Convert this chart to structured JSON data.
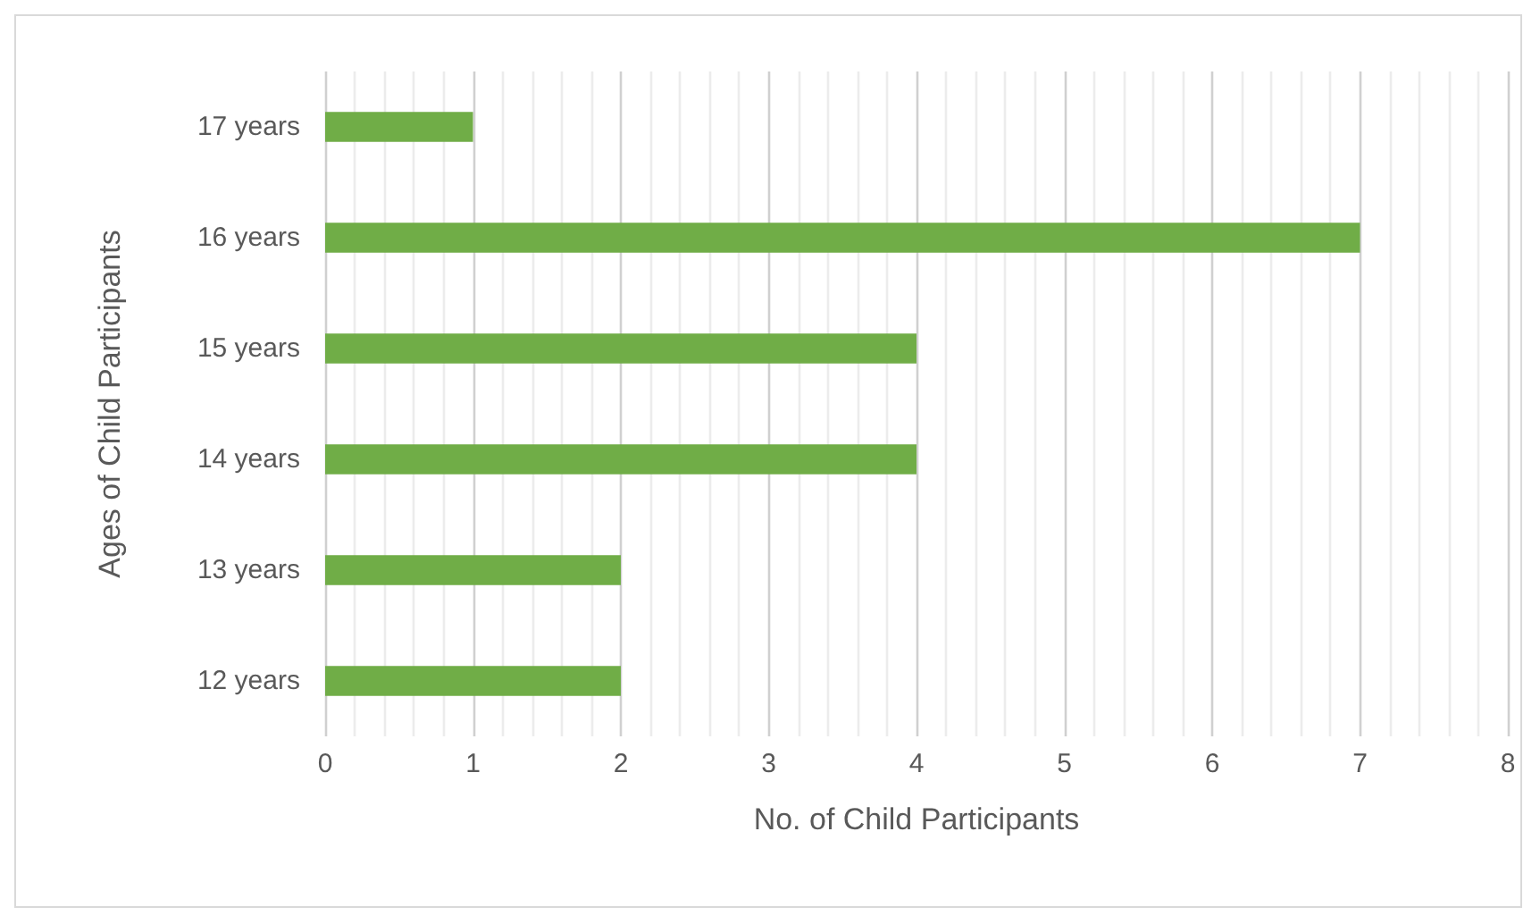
{
  "chart_data": {
    "type": "bar",
    "orientation": "horizontal",
    "xlabel": "No. of Child Participants",
    "ylabel": "Ages of Child Participants",
    "categories": [
      "17 years",
      "16 years",
      "15 years",
      "14 years",
      "13 years",
      "12 years"
    ],
    "values": [
      1,
      7,
      4,
      4,
      2,
      2
    ],
    "color": "#70ad47",
    "xlim": [
      0,
      8
    ],
    "xticks": [
      0,
      {
        "value": 0.2,
        "label": null
      },
      {
        "value": 0.4,
        "label": null
      },
      {
        "value": 0.6,
        "label": null
      },
      {
        "value": 0.8,
        "label": null
      },
      1,
      {
        "value": 1.2,
        "label": null
      },
      {
        "value": 1.4,
        "label": null
      },
      {
        "value": 1.6,
        "label": null
      },
      {
        "value": 1.8,
        "label": null
      },
      2,
      {
        "value": 2.2,
        "label": null
      },
      {
        "value": 2.4,
        "label": null
      },
      {
        "value": 2.6,
        "label": null
      },
      {
        "value": 2.8,
        "label": null
      },
      3,
      {
        "value": 3.2,
        "label": null
      },
      {
        "value": 3.4,
        "label": null
      },
      {
        "value": 3.6,
        "label": null
      },
      {
        "value": 3.8,
        "label": null
      },
      4,
      {
        "value": 4.2,
        "label": null
      },
      {
        "value": 4.4,
        "label": null
      },
      {
        "value": 4.6,
        "label": null
      },
      {
        "value": 4.8,
        "label": null
      },
      5,
      {
        "value": 5.2,
        "label": null
      },
      {
        "value": 5.4,
        "label": null
      },
      {
        "value": 5.6,
        "label": null
      },
      {
        "value": 5.8,
        "label": null
      },
      6,
      {
        "value": 6.2,
        "label": null
      },
      {
        "value": 6.4,
        "label": null
      },
      {
        "value": 6.6,
        "label": null
      },
      {
        "value": 6.8,
        "label": null
      },
      7,
      {
        "value": 7.2,
        "label": null
      },
      {
        "value": 7.4,
        "label": null
      },
      {
        "value": 7.6,
        "label": null
      },
      {
        "value": 7.8,
        "label": null
      },
      8
    ],
    "grid": "x"
  }
}
